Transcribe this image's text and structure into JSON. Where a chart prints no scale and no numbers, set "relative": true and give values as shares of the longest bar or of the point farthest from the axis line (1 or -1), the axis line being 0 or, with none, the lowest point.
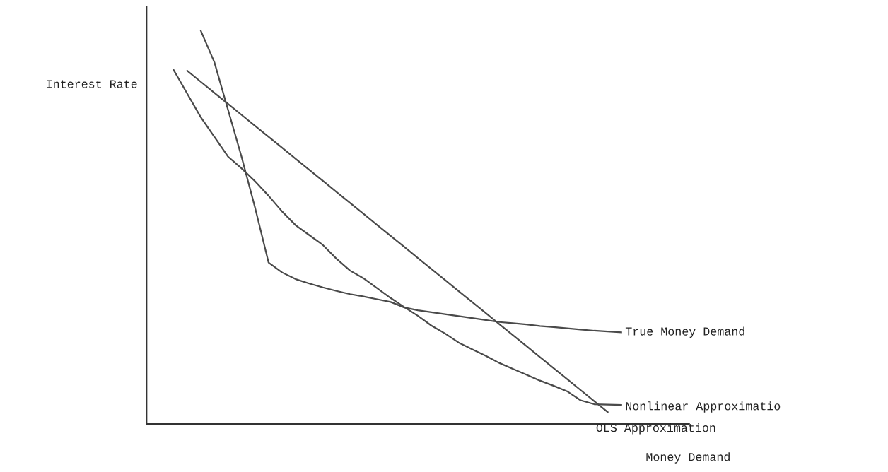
{
  "chart_data": {
    "type": "line",
    "relative": true,
    "xlabel": "Money Demand",
    "ylabel": "Interest Rate",
    "legend": false,
    "marker": "none",
    "line_style": "solid",
    "categories": [
      null,
      null,
      null,
      null,
      null,
      null,
      null,
      null,
      null,
      null,
      null,
      null,
      null,
      null,
      null,
      null,
      null,
      null,
      null,
      null,
      null,
      null,
      null,
      null,
      null,
      null,
      null,
      null,
      null,
      null,
      null,
      null,
      null,
      null,
      null,
      null,
      null,
      null,
      null,
      null,
      null
    ],
    "series": [
      {
        "name": "True Money Demand",
        "color": "#4a4a4a",
        "values": [
          null,
          null,
          null,
          null,
          1.0,
          0.92,
          0.8,
          0.68,
          0.55,
          0.41,
          0.385,
          0.368,
          0.357,
          0.347,
          0.338,
          0.33,
          0.324,
          0.317,
          0.31,
          0.296,
          0.289,
          0.284,
          0.279,
          0.274,
          0.269,
          0.264,
          0.259,
          0.256,
          0.253,
          0.249,
          0.246,
          0.243,
          0.24,
          0.237,
          0.235,
          0.233,
          null,
          null,
          null,
          null,
          null
        ]
      },
      {
        "name": "Nonlinear Approximatio",
        "color": "#4a4a4a",
        "values": [
          null,
          null,
          0.9,
          0.84,
          0.78,
          0.73,
          0.68,
          0.65,
          0.617,
          0.58,
          0.54,
          0.505,
          0.48,
          0.455,
          0.42,
          0.39,
          0.37,
          0.345,
          0.32,
          0.297,
          0.275,
          0.25,
          0.23,
          0.207,
          0.19,
          0.173,
          0.155,
          0.14,
          0.125,
          0.11,
          0.097,
          0.083,
          0.06,
          0.05,
          0.049,
          0.048,
          null,
          null,
          null,
          null,
          null
        ]
      },
      {
        "name": "OLS Approximation",
        "color": "#4a4a4a",
        "values": [
          null,
          null,
          null,
          0.898,
          0.87,
          0.842,
          0.814,
          0.786,
          0.758,
          0.73,
          0.702,
          0.674,
          0.646,
          0.618,
          0.59,
          0.562,
          0.534,
          0.506,
          0.478,
          0.45,
          0.422,
          0.394,
          0.366,
          0.338,
          0.31,
          0.282,
          0.254,
          0.226,
          0.198,
          0.17,
          0.142,
          0.114,
          0.086,
          0.058,
          0.03,
          null,
          null,
          null,
          null,
          null,
          null
        ]
      }
    ]
  }
}
